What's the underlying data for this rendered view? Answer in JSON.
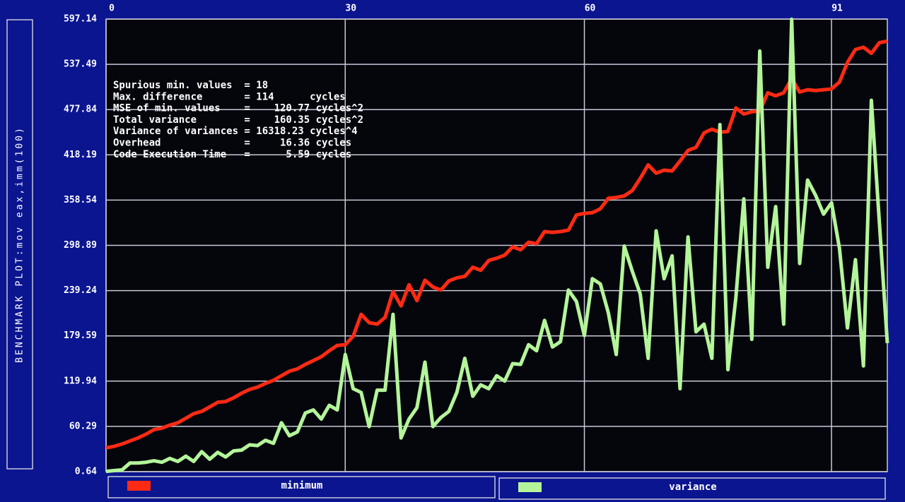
{
  "chart_data": {
    "type": "line",
    "y_axis_label": "BENCHMARK PLOT:mov eax,imm(100)",
    "annotations": [
      "Spurious min. values  = 18",
      "Max. difference       = 114      cycles",
      "MSE of min. values    =    120.77 cycles^2",
      "Total variance        =    160.35 cycles^2",
      "Variance of variances = 16318.23 cycles^4",
      "Overhead              =     16.36 cycles",
      "Code Execution Time   =      5.59 cycles"
    ],
    "x": [
      0,
      1,
      2,
      3,
      4,
      5,
      6,
      7,
      8,
      9,
      10,
      11,
      12,
      13,
      14,
      15,
      16,
      17,
      18,
      19,
      20,
      21,
      22,
      23,
      24,
      25,
      26,
      27,
      28,
      29,
      30,
      31,
      32,
      33,
      34,
      35,
      36,
      37,
      38,
      39,
      40,
      41,
      42,
      43,
      44,
      45,
      46,
      47,
      48,
      49,
      50,
      51,
      52,
      53,
      54,
      55,
      56,
      57,
      58,
      59,
      60,
      61,
      62,
      63,
      64,
      65,
      66,
      67,
      68,
      69,
      70,
      71,
      72,
      73,
      74,
      75,
      76,
      77,
      78,
      79,
      80,
      81,
      82,
      83,
      84,
      85,
      86,
      87,
      88,
      89,
      90,
      91,
      92,
      93,
      94,
      95,
      96,
      97,
      98
    ],
    "series": [
      {
        "name": "minimum",
        "color": "#ff2a14",
        "values": [
          32,
          34,
          37,
          41,
          45,
          50,
          56,
          58,
          62,
          65,
          71,
          77,
          80,
          86,
          92,
          93,
          98,
          104,
          109,
          112,
          117,
          121,
          127,
          133,
          136,
          142,
          147,
          152,
          160,
          167,
          168,
          179,
          208,
          197,
          195,
          204,
          238,
          219,
          247,
          226,
          253,
          244,
          240,
          252,
          256,
          258,
          270,
          266,
          279,
          282,
          286,
          297,
          293,
          303,
          301,
          317,
          316,
          317,
          319,
          339,
          341,
          342,
          347,
          361,
          362,
          364,
          371,
          387,
          405,
          394,
          398,
          397,
          410,
          424,
          428,
          447,
          452,
          448,
          449,
          480,
          472,
          475,
          476,
          500,
          496,
          500,
          519,
          501,
          504,
          503,
          504,
          505,
          514,
          540,
          557,
          560,
          552,
          566,
          568
        ]
      },
      {
        "name": "variance",
        "color": "#b4f59a",
        "values": [
          1,
          2,
          3,
          12,
          12,
          13,
          15,
          13,
          18,
          14,
          21,
          14,
          27,
          17,
          26,
          20,
          28,
          29,
          36,
          35,
          42,
          38,
          65,
          48,
          53,
          78,
          82,
          70,
          88,
          82,
          155,
          110,
          105,
          60,
          108,
          108,
          208,
          45,
          70,
          85,
          145,
          60,
          72,
          80,
          105,
          150,
          100,
          115,
          110,
          127,
          120,
          143,
          142,
          168,
          160,
          200,
          165,
          172,
          240,
          225,
          180,
          255,
          248,
          210,
          155,
          298,
          265,
          235,
          150,
          318,
          255,
          285,
          110,
          310,
          185,
          195,
          150,
          458,
          135,
          230,
          360,
          175,
          555,
          270,
          350,
          195,
          597,
          275,
          385,
          365,
          340,
          355,
          295,
          190,
          280,
          140,
          490,
          330,
          170
        ]
      }
    ],
    "xlim": [
      0,
      98
    ],
    "xticks": [
      0,
      30,
      60,
      91
    ],
    "ylim": [
      0.64,
      597.14
    ],
    "yticks": [
      0.64,
      60.29,
      119.94,
      179.59,
      239.24,
      298.89,
      358.54,
      418.19,
      477.84,
      537.49,
      597.14
    ],
    "grid": true
  }
}
